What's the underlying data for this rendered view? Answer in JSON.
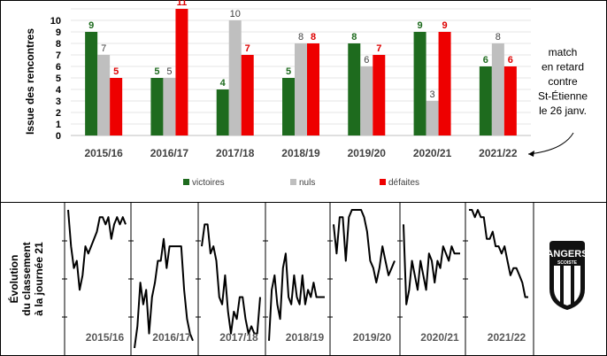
{
  "chart_data": [
    {
      "type": "bar",
      "ylabel": "Issue des rencontres",
      "ylim": [
        0,
        11
      ],
      "yticks": [
        0,
        1,
        2,
        3,
        4,
        5,
        6,
        7,
        8,
        9,
        10
      ],
      "grid": true,
      "legend_position": "bottom",
      "categories": [
        "2015/16",
        "2016/17",
        "2017/18",
        "2018/19",
        "2019/20",
        "2020/21",
        "2021/22"
      ],
      "series": [
        {
          "name": "victoires",
          "color": "#1e6b1e",
          "label_color": "#1e6b1e",
          "values": [
            9,
            5,
            4,
            5,
            8,
            9,
            6
          ]
        },
        {
          "name": "nuls",
          "color": "#bfbfbf",
          "label_color": "#404040",
          "values": [
            7,
            5,
            10,
            8,
            6,
            3,
            8
          ]
        },
        {
          "name": "défaites",
          "color": "#ee0000",
          "label_color": "#dd0000",
          "values": [
            5,
            11,
            7,
            8,
            7,
            9,
            6
          ]
        }
      ],
      "annotation": [
        "match",
        "en retard",
        "contre",
        "St-Étienne",
        "le 26 janv."
      ]
    },
    {
      "type": "line",
      "ylabel": [
        "Évolution",
        "du classement",
        "à la journée 21"
      ],
      "y_inverted": true,
      "ylim": [
        1,
        20
      ],
      "x": [
        1,
        2,
        3,
        4,
        5,
        6,
        7,
        8,
        9,
        10,
        11,
        12,
        13,
        14,
        15,
        16,
        17,
        18,
        19,
        20,
        21
      ],
      "panels": [
        {
          "season": "2015/16",
          "positions": [
            1,
            6,
            9,
            8,
            12,
            10,
            6,
            7,
            6,
            5,
            4,
            2,
            2,
            3,
            2,
            5,
            3,
            2,
            3,
            2,
            3
          ]
        },
        {
          "season": "2016/17",
          "positions": [
            20,
            17,
            11,
            14,
            12,
            18,
            13,
            11,
            8,
            8,
            5,
            9,
            6,
            6,
            6,
            6,
            6,
            12,
            16,
            18,
            19
          ]
        },
        {
          "season": "2017/18",
          "positions": [
            6,
            3,
            3,
            7,
            6,
            8,
            13,
            14,
            10,
            15,
            18,
            15,
            16,
            13,
            13,
            16,
            18,
            17,
            18,
            18,
            13
          ]
        },
        {
          "season": "2018/19",
          "positions": [
            19,
            12,
            10,
            14,
            16,
            9,
            7,
            13,
            14,
            10,
            13,
            14,
            10,
            14,
            12,
            13,
            11,
            13,
            13,
            13,
            13
          ]
        },
        {
          "season": "2019/20",
          "positions": [
            3,
            7,
            2,
            2,
            8,
            2,
            1,
            1,
            1,
            1,
            2,
            4,
            8,
            9,
            11,
            9,
            6,
            8,
            10,
            9,
            8
          ]
        },
        {
          "season": "2020/21",
          "positions": [
            3,
            14,
            12,
            8,
            10,
            12,
            8,
            10,
            12,
            7,
            8,
            11,
            8,
            9,
            6,
            7,
            8,
            6,
            7,
            7,
            7
          ]
        },
        {
          "season": "2021/22",
          "positions": [
            1,
            1,
            2,
            1,
            2,
            2,
            5,
            5,
            4,
            6,
            6,
            7,
            6,
            8,
            10,
            9,
            9,
            10,
            11,
            13,
            13
          ]
        }
      ]
    }
  ],
  "logo": {
    "text_top": "ANGERS",
    "text_mid": "SCOISTE"
  }
}
